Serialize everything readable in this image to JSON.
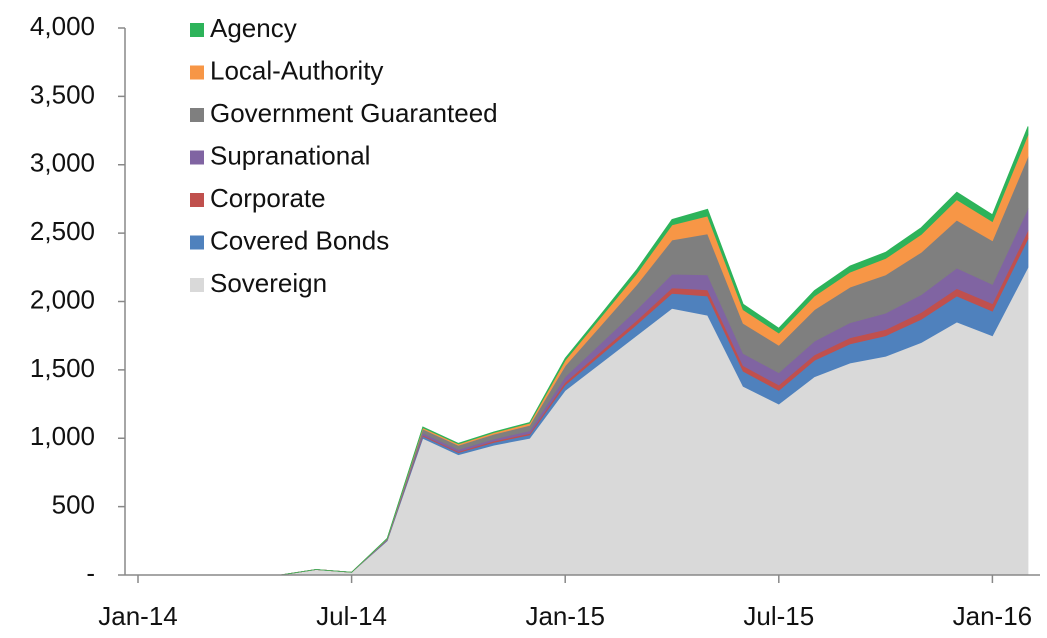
{
  "chart_data": {
    "type": "stacked-area",
    "x": [
      "Jan-14",
      "Feb-14",
      "Mar-14",
      "Apr-14",
      "May-14",
      "Jun-14",
      "Jul-14",
      "Aug-14",
      "Sep-14",
      "Oct-14",
      "Nov-14",
      "Dec-14",
      "Jan-15",
      "Feb-15",
      "Mar-15",
      "Apr-15",
      "May-15",
      "Jun-15",
      "Jul-15",
      "Aug-15",
      "Sep-15",
      "Oct-15",
      "Nov-15",
      "Dec-15",
      "Jan-16",
      "Feb-16"
    ],
    "xticks": [
      "Jan-14",
      "Jul-14",
      "Jan-15",
      "Jul-15",
      "Jan-16"
    ],
    "ylim": [
      0,
      4000
    ],
    "yticks": [
      {
        "value": 0,
        "label": "-"
      },
      500,
      {
        "value": 1000,
        "label": "1,000"
      },
      {
        "value": 1500,
        "label": "1,500"
      },
      {
        "value": 2000,
        "label": "2,000"
      },
      {
        "value": 2500,
        "label": "2,500"
      },
      {
        "value": 3000,
        "label": "3,000"
      },
      {
        "value": 3500,
        "label": "3,500"
      },
      {
        "value": 4000,
        "label": "4,000"
      }
    ],
    "legend": "upper left",
    "series": [
      {
        "name": "Sovereign",
        "color": "#d9d9d9",
        "values": [
          0,
          0,
          0,
          0,
          0,
          40,
          20,
          250,
          1000,
          880,
          950,
          1000,
          1350,
          1550,
          1750,
          1950,
          1900,
          1380,
          1250,
          1450,
          1550,
          1600,
          1700,
          1850,
          1750,
          2250
        ]
      },
      {
        "name": "Covered Bonds",
        "color": "#4f81bd",
        "values": [
          0,
          0,
          0,
          0,
          0,
          0,
          0,
          5,
          15,
          15,
          20,
          25,
          40,
          60,
          80,
          110,
          140,
          110,
          100,
          120,
          140,
          150,
          170,
          190,
          180,
          210
        ]
      },
      {
        "name": "Corporate",
        "color": "#c0504d",
        "values": [
          0,
          0,
          0,
          0,
          0,
          0,
          0,
          2,
          8,
          8,
          10,
          10,
          20,
          25,
          30,
          40,
          45,
          40,
          40,
          40,
          45,
          45,
          50,
          55,
          55,
          60
        ]
      },
      {
        "name": "Supranational",
        "color": "#8064a2",
        "values": [
          0,
          0,
          0,
          0,
          0,
          0,
          0,
          3,
          15,
          15,
          15,
          20,
          40,
          60,
          80,
          100,
          110,
          90,
          90,
          100,
          110,
          120,
          130,
          150,
          140,
          160
        ]
      },
      {
        "name": "Government Guaranteed",
        "color": "#7f7f7f",
        "values": [
          0,
          0,
          0,
          0,
          0,
          0,
          0,
          5,
          30,
          30,
          35,
          40,
          80,
          130,
          180,
          250,
          300,
          220,
          200,
          230,
          260,
          280,
          310,
          350,
          320,
          380
        ]
      },
      {
        "name": "Local-Authority",
        "color": "#f79646",
        "values": [
          0,
          0,
          0,
          0,
          0,
          0,
          0,
          2,
          10,
          10,
          12,
          15,
          40,
          60,
          80,
          110,
          130,
          100,
          90,
          100,
          110,
          120,
          130,
          150,
          140,
          160
        ]
      },
      {
        "name": "Agency",
        "color": "#2db35a",
        "values": [
          0,
          0,
          0,
          0,
          0,
          0,
          0,
          1,
          5,
          5,
          5,
          5,
          15,
          20,
          30,
          40,
          50,
          40,
          35,
          40,
          45,
          45,
          50,
          55,
          50,
          60
        ]
      }
    ]
  }
}
